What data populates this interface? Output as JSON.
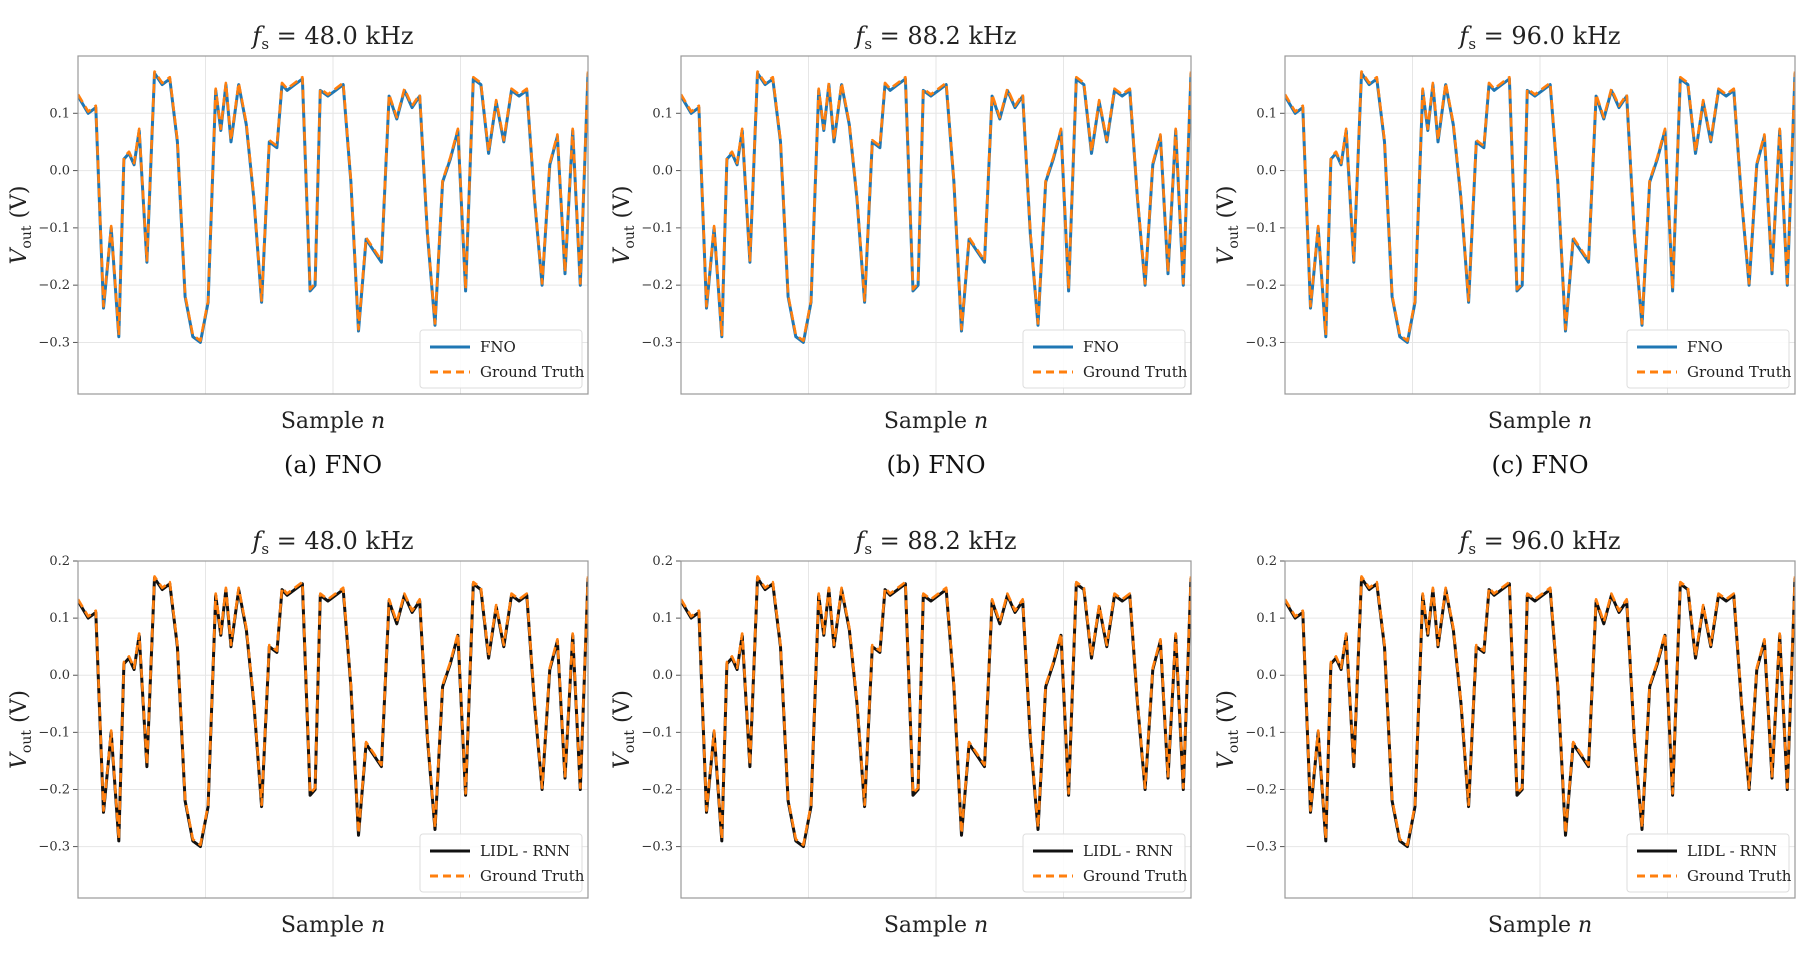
{
  "colors": {
    "fno": "#1f77b4",
    "lidl_rnn": "#111111",
    "ground_truth": "#ff7f0e",
    "grid": "#e6e6e6",
    "frame": "#999999"
  },
  "chart_data": [
    {
      "type": "line",
      "title": "f_s = 48.0 kHz",
      "title_main": "f",
      "title_sub": "s",
      "title_rest": " = 48.0 kHz",
      "xlabel": "Sample n",
      "xlabel_main": "Sample ",
      "xlabel_var": "n",
      "ylabel": "V_out (V)",
      "ylabel_main": "V",
      "ylabel_sub": "out",
      "ylabel_rest": " (V)",
      "ylim": [
        -0.39,
        0.2
      ],
      "yticks": [
        "0.1",
        "0.0",
        "−0.1",
        "−0.2",
        "−0.3"
      ],
      "grid": true,
      "legend_position": "lower-right",
      "series": [
        {
          "name": "FNO",
          "style": "solid",
          "color": "fno"
        },
        {
          "name": "Ground Truth",
          "style": "dashed",
          "color": "ground_truth"
        }
      ],
      "caption": "(a) FNO"
    },
    {
      "type": "line",
      "title": "f_s = 88.2 kHz",
      "title_main": "f",
      "title_sub": "s",
      "title_rest": " = 88.2 kHz",
      "xlabel": "Sample n",
      "xlabel_main": "Sample ",
      "xlabel_var": "n",
      "ylabel": "V_out (V)",
      "ylabel_main": "V",
      "ylabel_sub": "out",
      "ylabel_rest": " (V)",
      "ylim": [
        -0.39,
        0.2
      ],
      "yticks": [
        "0.1",
        "0.0",
        "−0.1",
        "−0.2",
        "−0.3"
      ],
      "grid": true,
      "legend_position": "lower-right",
      "series": [
        {
          "name": "FNO",
          "style": "solid",
          "color": "fno"
        },
        {
          "name": "Ground Truth",
          "style": "dashed",
          "color": "ground_truth"
        }
      ],
      "caption": "(b) FNO"
    },
    {
      "type": "line",
      "title": "f_s = 96.0 kHz",
      "title_main": "f",
      "title_sub": "s",
      "title_rest": " = 96.0 kHz",
      "xlabel": "Sample n",
      "xlabel_main": "Sample ",
      "xlabel_var": "n",
      "ylabel": "V_out (V)",
      "ylabel_main": "V",
      "ylabel_sub": "out",
      "ylabel_rest": " (V)",
      "ylim": [
        -0.39,
        0.2
      ],
      "yticks": [
        "0.1",
        "0.0",
        "−0.1",
        "−0.2",
        "−0.3"
      ],
      "grid": true,
      "legend_position": "lower-right",
      "series": [
        {
          "name": "FNO",
          "style": "solid",
          "color": "fno"
        },
        {
          "name": "Ground Truth",
          "style": "dashed",
          "color": "ground_truth"
        }
      ],
      "caption": "(c) FNO"
    },
    {
      "type": "line",
      "title": "f_s = 48.0 kHz",
      "title_main": "f",
      "title_sub": "s",
      "title_rest": " = 48.0 kHz",
      "xlabel": "Sample n",
      "xlabel_main": "Sample ",
      "xlabel_var": "n",
      "ylabel": "V_out (V)",
      "ylabel_main": "V",
      "ylabel_sub": "out",
      "ylabel_rest": " (V)",
      "ylim": [
        -0.39,
        0.2
      ],
      "yticks": [
        "0.2",
        "0.1",
        "0.0",
        "−0.1",
        "−0.2",
        "−0.3"
      ],
      "grid": true,
      "legend_position": "lower-right",
      "series": [
        {
          "name": "LIDL - RNN",
          "style": "solid",
          "color": "lidl_rnn"
        },
        {
          "name": "Ground Truth",
          "style": "dashed",
          "color": "ground_truth"
        }
      ]
    },
    {
      "type": "line",
      "title": "f_s = 88.2 kHz",
      "title_main": "f",
      "title_sub": "s",
      "title_rest": " = 88.2 kHz",
      "xlabel": "Sample n",
      "xlabel_main": "Sample ",
      "xlabel_var": "n",
      "ylabel": "V_out (V)",
      "ylabel_main": "V",
      "ylabel_sub": "out",
      "ylabel_rest": " (V)",
      "ylim": [
        -0.39,
        0.2
      ],
      "yticks": [
        "0.2",
        "0.1",
        "0.0",
        "−0.1",
        "−0.2",
        "−0.3"
      ],
      "grid": true,
      "legend_position": "lower-right",
      "series": [
        {
          "name": "LIDL - RNN",
          "style": "solid",
          "color": "lidl_rnn"
        },
        {
          "name": "Ground Truth",
          "style": "dashed",
          "color": "ground_truth"
        }
      ]
    },
    {
      "type": "line",
      "title": "f_s = 96.0 kHz",
      "title_main": "f",
      "title_sub": "s",
      "title_rest": " = 96.0 kHz",
      "xlabel": "Sample n",
      "xlabel_main": "Sample ",
      "xlabel_var": "n",
      "ylabel": "V_out (V)",
      "ylabel_main": "V",
      "ylabel_sub": "out",
      "ylabel_rest": " (V)",
      "ylim": [
        -0.39,
        0.2
      ],
      "yticks": [
        "0.2",
        "0.1",
        "0.0",
        "−0.1",
        "−0.2",
        "−0.3"
      ],
      "grid": true,
      "legend_position": "lower-right",
      "series": [
        {
          "name": "LIDL - RNN",
          "style": "solid",
          "color": "lidl_rnn"
        },
        {
          "name": "Ground Truth",
          "style": "dashed",
          "color": "ground_truth"
        }
      ]
    }
  ],
  "waveform": {
    "t": [
      0.0,
      0.02,
      0.035,
      0.05,
      0.065,
      0.08,
      0.09,
      0.1,
      0.11,
      0.12,
      0.135,
      0.15,
      0.165,
      0.18,
      0.195,
      0.21,
      0.225,
      0.24,
      0.255,
      0.27,
      0.28,
      0.29,
      0.3,
      0.315,
      0.33,
      0.345,
      0.36,
      0.375,
      0.39,
      0.4,
      0.41,
      0.425,
      0.44,
      0.455,
      0.465,
      0.475,
      0.49,
      0.505,
      0.52,
      0.535,
      0.55,
      0.565,
      0.58,
      0.595,
      0.61,
      0.625,
      0.64,
      0.655,
      0.67,
      0.685,
      0.7,
      0.715,
      0.73,
      0.745,
      0.76,
      0.775,
      0.79,
      0.805,
      0.82,
      0.835,
      0.85,
      0.865,
      0.88,
      0.895,
      0.91,
      0.925,
      0.94,
      0.955,
      0.97,
      0.985,
      1.0
    ],
    "v": [
      0.13,
      0.1,
      0.11,
      -0.24,
      -0.1,
      -0.29,
      0.02,
      0.03,
      0.01,
      0.07,
      -0.16,
      0.17,
      0.15,
      0.16,
      0.05,
      -0.22,
      -0.29,
      -0.3,
      -0.23,
      0.14,
      0.07,
      0.15,
      0.05,
      0.15,
      0.08,
      -0.05,
      -0.23,
      0.05,
      0.04,
      0.15,
      0.14,
      0.15,
      0.16,
      -0.21,
      -0.2,
      0.14,
      0.13,
      0.14,
      0.15,
      -0.02,
      -0.28,
      -0.12,
      -0.14,
      -0.16,
      0.13,
      0.09,
      0.14,
      0.11,
      0.13,
      -0.11,
      -0.27,
      -0.02,
      0.02,
      0.07,
      -0.21,
      0.16,
      0.15,
      0.03,
      0.12,
      0.05,
      0.14,
      0.13,
      0.14,
      -0.05,
      -0.2,
      0.01,
      0.06,
      -0.18,
      0.07,
      -0.2,
      0.17
    ]
  }
}
